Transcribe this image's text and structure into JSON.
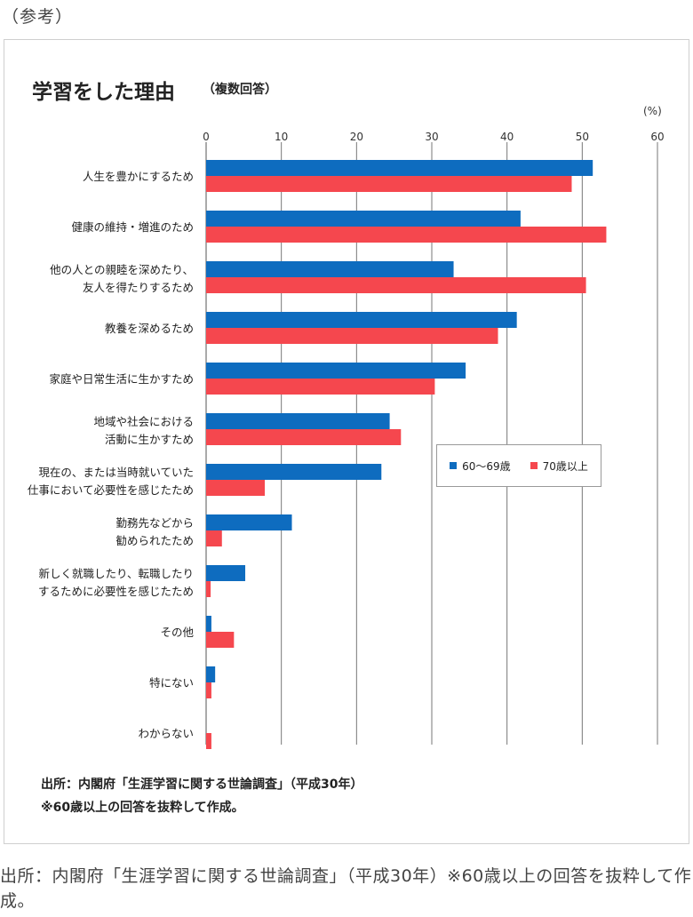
{
  "top_note": "（参考）",
  "chart_data": {
    "type": "bar",
    "orientation": "horizontal",
    "title": "学習をした理由",
    "subtitle": "（複数回答）",
    "unit": "(%)",
    "xlim": [
      0,
      60
    ],
    "xticks": [
      "0",
      "10",
      "20",
      "30",
      "40",
      "50",
      "60"
    ],
    "grid": true,
    "legend_position": "center-right",
    "categories": [
      [
        "人生を豊かにするため"
      ],
      [
        "健康の維持・増進のため"
      ],
      [
        "他の人との親睦を深めたり、",
        "友人を得たりするため"
      ],
      [
        "教養を深めるため"
      ],
      [
        "家庭や日常生活に生かすため"
      ],
      [
        "地域や社会における",
        "活動に生かすため"
      ],
      [
        "現在の、または当時就いていた",
        "仕事において必要性を感じたため"
      ],
      [
        "勤務先などから",
        "勧められたため"
      ],
      [
        "新しく就職したり、転職したり",
        "するために必要性を感じたため"
      ],
      [
        "その他"
      ],
      [
        "特にない"
      ],
      [
        "わからない"
      ]
    ],
    "series": [
      {
        "name": "60〜69歳",
        "color": "#0e6cbf",
        "values": [
          51.4,
          41.8,
          32.9,
          41.3,
          34.5,
          24.4,
          23.3,
          11.4,
          5.2,
          0.7,
          1.2,
          0.0
        ]
      },
      {
        "name": "70歳以上",
        "color": "#f5474e",
        "values": [
          48.6,
          53.2,
          50.5,
          38.8,
          30.4,
          25.9,
          7.8,
          2.1,
          0.6,
          3.7,
          0.7,
          0.7
        ]
      }
    ]
  },
  "source": {
    "line1": "出所：内閣府「生涯学習に関する世論調査」（平成30年）",
    "line2": "※60歳以上の回答を抜粋して作成。"
  },
  "caption": "出所：内閣府「生涯学習に関する世論調査」（平成30年）※60歳以上の回答を抜粋して作成。"
}
